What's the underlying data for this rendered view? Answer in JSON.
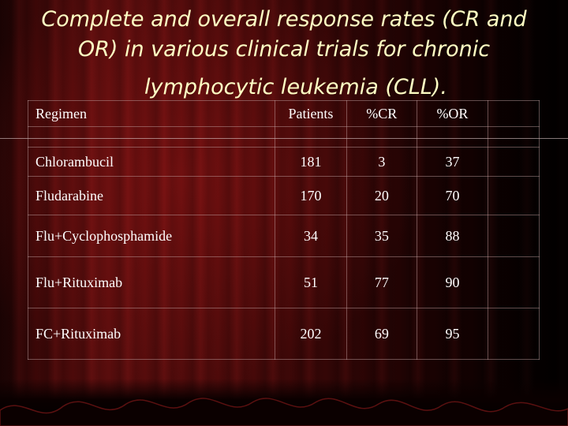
{
  "title": {
    "line1": "Complete and overall response rates (CR and",
    "line2": "OR) in various clinical trials for chronic",
    "line3": "lymphocytic leukemia (CLL)."
  },
  "table": {
    "headers": {
      "regimen": "Regimen",
      "patients": "Patients",
      "cr": "%CR",
      "or": "%OR"
    },
    "rows": [
      {
        "regimen": "Chlorambucil",
        "patients": "181",
        "cr": "3",
        "or": "37"
      },
      {
        "regimen": "Fludarabine",
        "patients": "170",
        "cr": "20",
        "or": "70"
      },
      {
        "regimen": "Flu+Cyclophosphamide",
        "patients": "34",
        "cr": "35",
        "or": "88"
      },
      {
        "regimen": "Flu+Rituximab",
        "patients": "51",
        "cr": "77",
        "or": "90"
      },
      {
        "regimen": "FC+Rituximab",
        "patients": "202",
        "cr": "69",
        "or": "95"
      }
    ]
  },
  "colors": {
    "title_text": "#ffffc4",
    "table_text": "#ffffff",
    "curtain": "#4c0a0a"
  }
}
